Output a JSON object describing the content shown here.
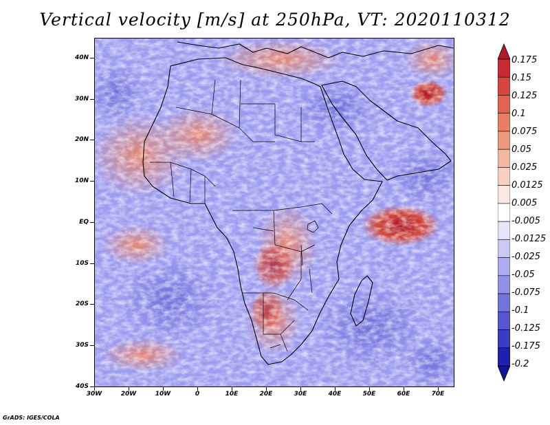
{
  "title": "Vertical velocity [m/s] at 250hPa, VT: 2020110312",
  "footer": "GrADS: IGES/COLA",
  "map": {
    "lat_labels": [
      "40N",
      "30N",
      "20N",
      "10N",
      "EQ",
      "10S",
      "20S",
      "30S",
      "40S"
    ],
    "lon_labels": [
      "30W",
      "20W",
      "10W",
      "0",
      "10E",
      "20E",
      "30E",
      "40E",
      "50E",
      "60E",
      "70E"
    ],
    "extent": {
      "lon_min": -30,
      "lon_max": 75,
      "lat_min": -40,
      "lat_max": 45
    }
  },
  "colorbar": {
    "labels": [
      "0.175",
      "0.15",
      "0.125",
      "0.1",
      "0.075",
      "0.05",
      "0.025",
      "0.0125",
      "0.005",
      "-0.005",
      "-0.0125",
      "-0.025",
      "-0.05",
      "-0.075",
      "-0.1",
      "-0.125",
      "-0.175",
      "-0.2"
    ],
    "colors": [
      "#b2182b",
      "#c72a33",
      "#d6453f",
      "#e0634f",
      "#e87e65",
      "#ee9a80",
      "#f3b6a0",
      "#f7d0c1",
      "#fbe9e1",
      "#ffffff",
      "#e4e4fb",
      "#c9c9f5",
      "#acacee",
      "#9090e6",
      "#7373dc",
      "#5656d0",
      "#3a3ac2",
      "#2020b0",
      "#12129a"
    ]
  },
  "colors": {
    "warm": "#e2705c",
    "cool": "#8c8cea",
    "coast": "#000000"
  }
}
